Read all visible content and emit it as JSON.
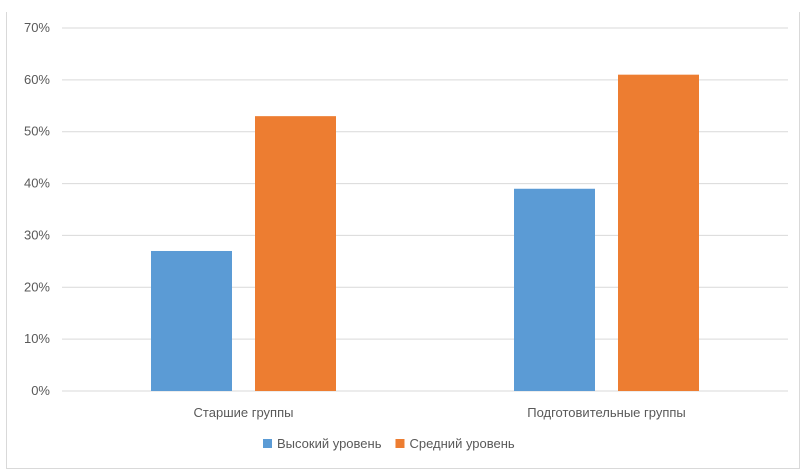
{
  "page_title": "",
  "chart_data": {
    "type": "bar",
    "title": "",
    "xlabel": "",
    "ylabel": "",
    "categories": [
      "Старшие группы",
      "Подготовительные группы"
    ],
    "series": [
      {
        "name": "Высокий уровень",
        "values": [
          27,
          39
        ],
        "color": "#5B9BD5"
      },
      {
        "name": "Средний уровень",
        "values": [
          53,
          61
        ],
        "color": "#ED7D31"
      }
    ],
    "ylim": [
      0,
      70
    ],
    "y_ticks": [
      "0%",
      "10%",
      "20%",
      "30%",
      "40%",
      "50%",
      "60%",
      "70%"
    ],
    "y_unit": "%",
    "grid": true,
    "gridline_color": "#d9d9d9",
    "legend_position": "bottom"
  }
}
